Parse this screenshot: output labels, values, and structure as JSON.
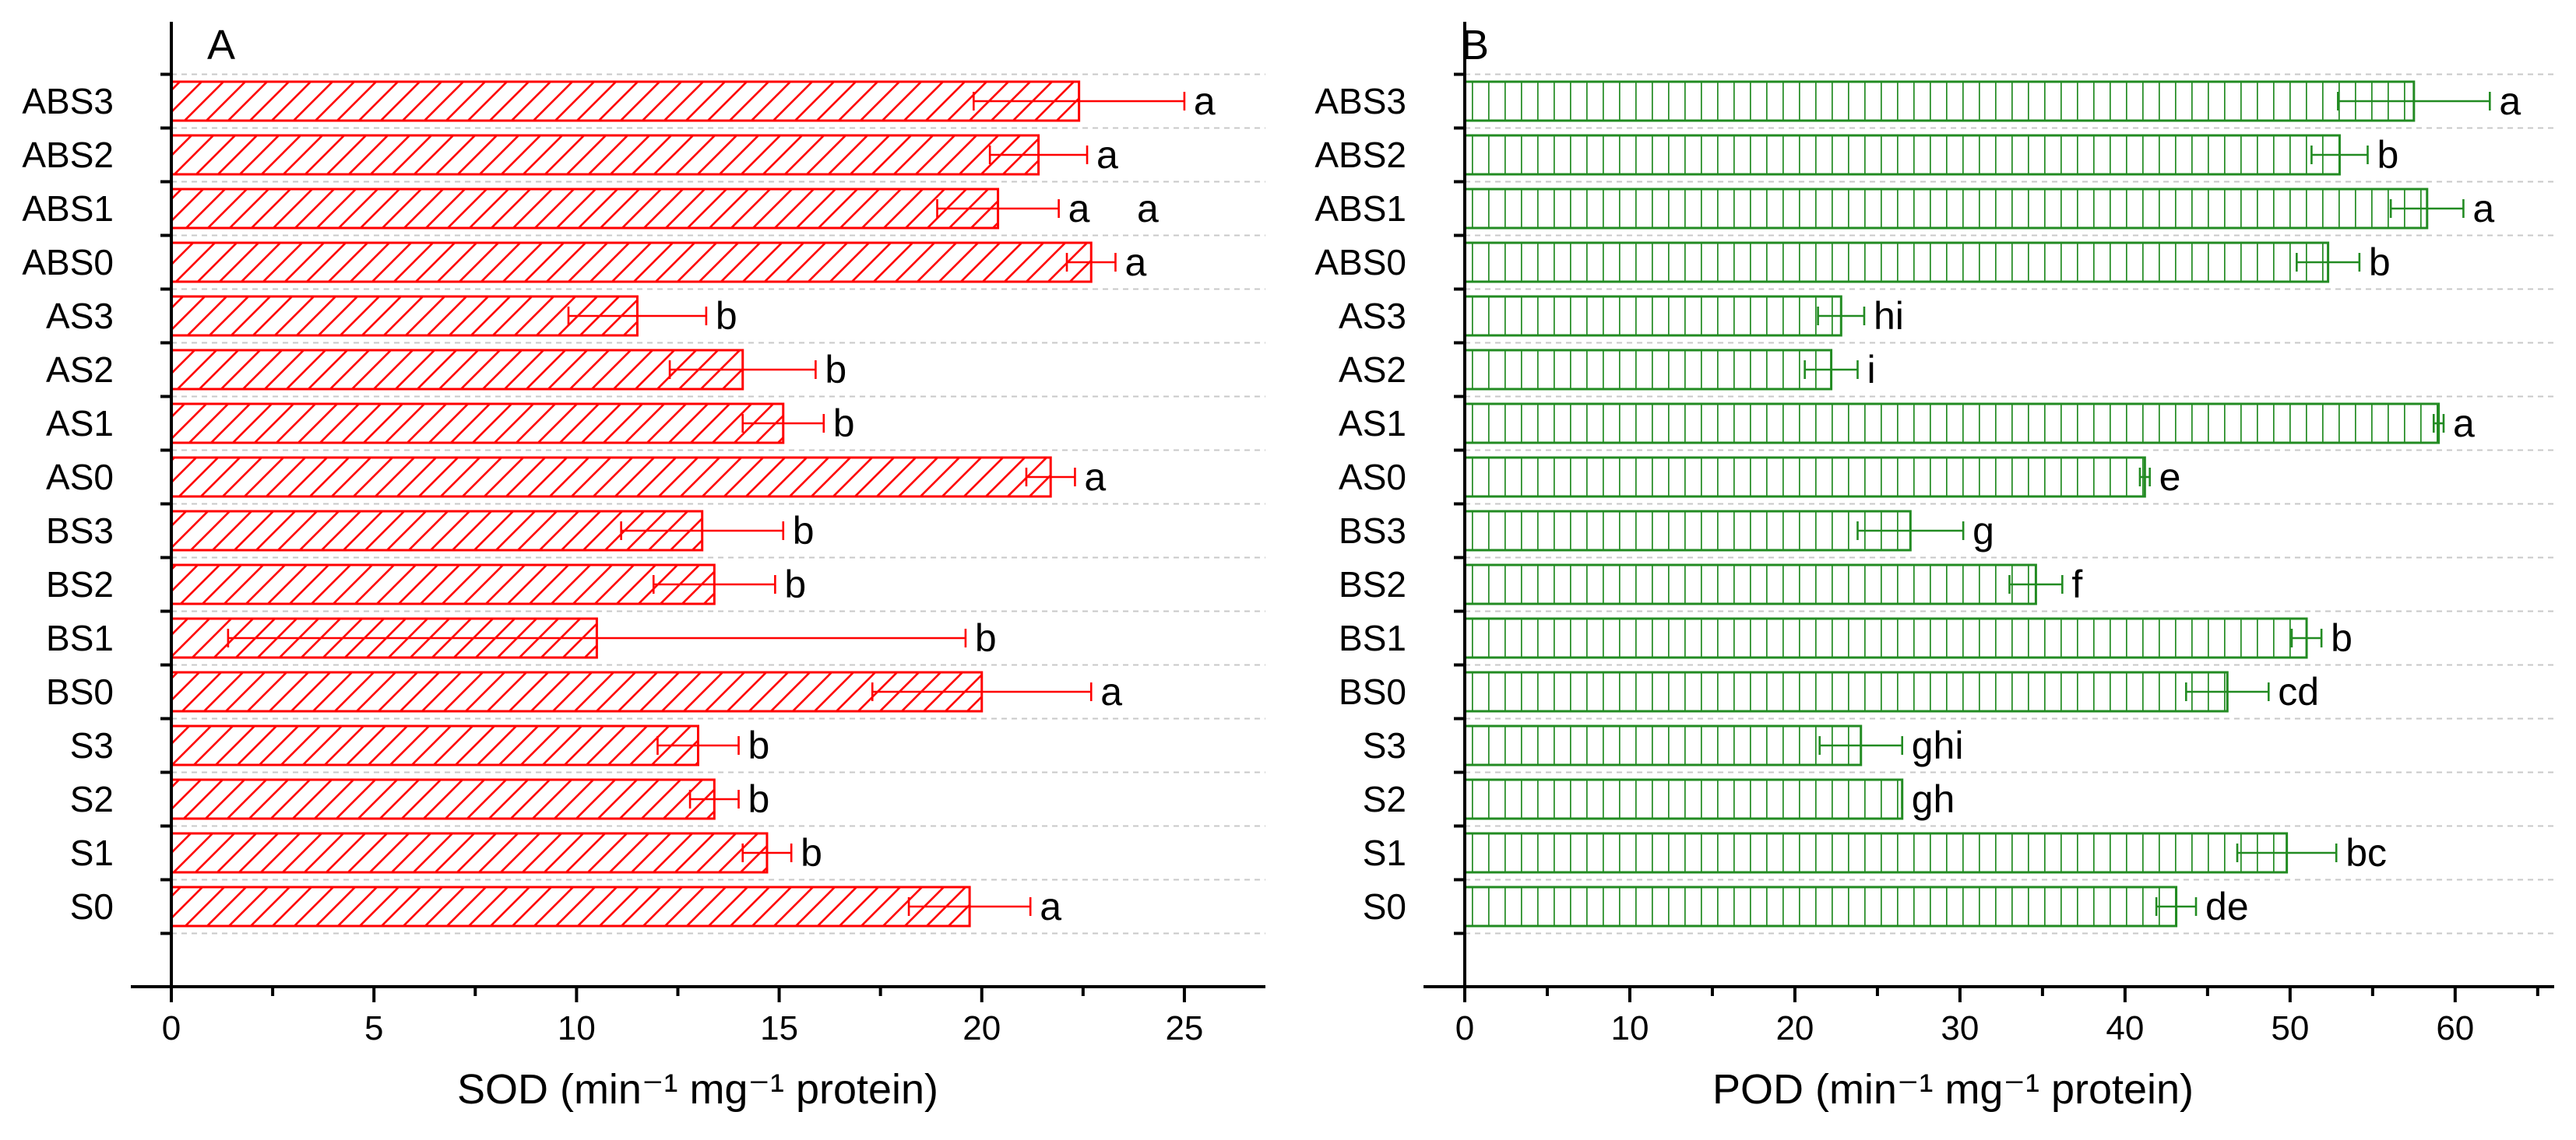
{
  "chart_data": [
    {
      "type": "bar",
      "orientation": "horizontal",
      "panel_label": "A",
      "categories": [
        "ABS3",
        "ABS2",
        "ABS1",
        "ABS0",
        "AS3",
        "AS2",
        "AS1",
        "AS0",
        "BS3",
        "BS2",
        "BS1",
        "BS0",
        "S3",
        "S2",
        "S1",
        "S0"
      ],
      "values": [
        22.4,
        21.4,
        20.4,
        22.7,
        11.5,
        14.1,
        15.1,
        21.7,
        13.1,
        13.4,
        10.5,
        20.0,
        13.0,
        13.4,
        14.7,
        19.7
      ],
      "errors": [
        2.6,
        1.2,
        1.5,
        0.6,
        1.7,
        1.8,
        1.0,
        0.6,
        2.0,
        1.5,
        9.1,
        2.7,
        1.0,
        0.6,
        0.6,
        1.5
      ],
      "letters": [
        "a",
        "a",
        "a",
        "a",
        "b",
        "b",
        "b",
        "a",
        "b",
        "b",
        "b",
        "a",
        "b",
        "b",
        "b",
        "a"
      ],
      "extra_annotation": "a",
      "xlabel": "SOD (min⁻¹ mg⁻¹ protein)",
      "xlim": [
        -1,
        27
      ],
      "xticks": [
        "0",
        "5",
        "10",
        "15",
        "20",
        "25"
      ],
      "color": "#ff0000",
      "pattern": "diagonal-hatch",
      "grid": true
    },
    {
      "type": "bar",
      "orientation": "horizontal",
      "panel_label": "B",
      "categories": [
        "ABS3",
        "ABS2",
        "ABS1",
        "ABS0",
        "AS3",
        "AS2",
        "AS1",
        "AS0",
        "BS3",
        "BS2",
        "BS1",
        "BS0",
        "S3",
        "S2",
        "S1",
        "S0"
      ],
      "values": [
        57.5,
        53.0,
        58.3,
        52.3,
        22.8,
        22.2,
        59.0,
        41.2,
        27.0,
        34.6,
        51.0,
        46.2,
        24.0,
        26.5,
        49.8,
        43.1
      ],
      "errors": [
        4.6,
        1.7,
        2.2,
        1.9,
        1.4,
        1.6,
        0.3,
        0.3,
        3.2,
        1.6,
        0.9,
        2.5,
        2.5,
        0.0,
        3.0,
        1.2
      ],
      "letters": [
        "a",
        "b",
        "a",
        "b",
        "hi",
        "i",
        "a",
        "e",
        "g",
        "f",
        "b",
        "cd",
        "ghi",
        "gh",
        "bc",
        "de"
      ],
      "xlabel": "POD (min⁻¹ mg⁻¹ protein)",
      "xlim": [
        -2.5,
        66
      ],
      "xticks": [
        "0",
        "10",
        "20",
        "30",
        "40",
        "50",
        "60"
      ],
      "color": "#228b22",
      "pattern": "vertical-lines",
      "grid": true
    }
  ]
}
